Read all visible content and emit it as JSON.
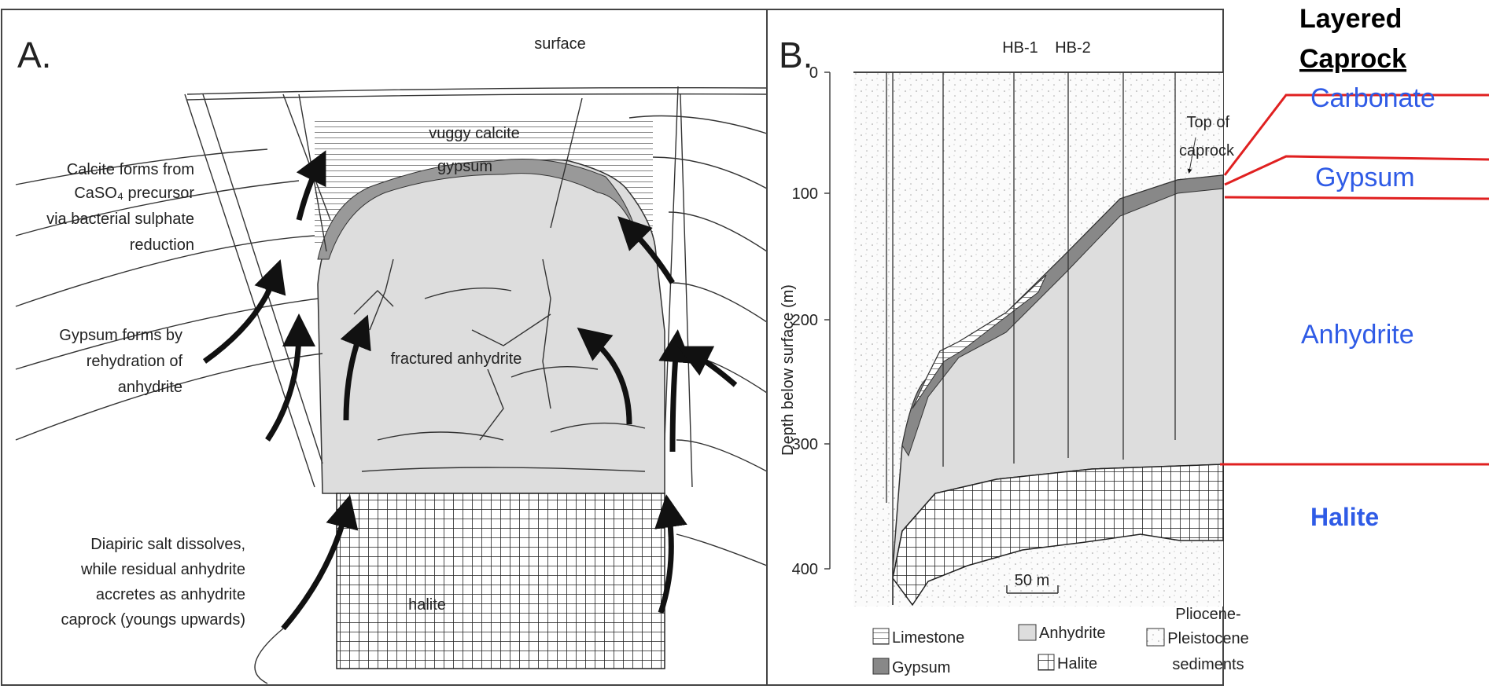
{
  "panel_a": {
    "label": "A.",
    "surface": "surface",
    "vuggy_calcite": "vuggy calcite",
    "gypsum": "gypsum",
    "fractured_anhydrite": "fractured anhydrite",
    "halite": "halite",
    "notes": [
      [
        "Calcite forms from",
        "CaSO₄ precursor",
        "via bacterial sulphate",
        "reduction"
      ],
      [
        "Gypsum forms by",
        "rehydration of",
        "anhydrite"
      ],
      [
        "Diapiric salt dissolves,",
        "while residual anhydrite",
        "accretes as anhydrite",
        "caprock (youngs upwards)"
      ]
    ]
  },
  "panel_b": {
    "label": "B.",
    "wells": [
      "HB-1",
      "HB-2"
    ],
    "y_axis_label": "Depth below surface (m)",
    "y_ticks": [
      "0",
      "100",
      "200",
      "300",
      "400"
    ],
    "top_of_caprock": [
      "Top of",
      "caprock"
    ],
    "scale_bar": "50 m",
    "legend": {
      "limestone": "Limestone",
      "gypsum": "Gypsum",
      "anhydrite": "Anhydrite",
      "halite": "Halite",
      "sediments": [
        "Pliocene-",
        "Pleistocene",
        "sediments"
      ]
    }
  },
  "annotations": {
    "title": [
      "Layered",
      "Caprock"
    ],
    "layers": {
      "carbonate": "Carbonate",
      "gypsum": "Gypsum",
      "anhydrite": "Anhydrite",
      "halite": "Halite"
    }
  }
}
